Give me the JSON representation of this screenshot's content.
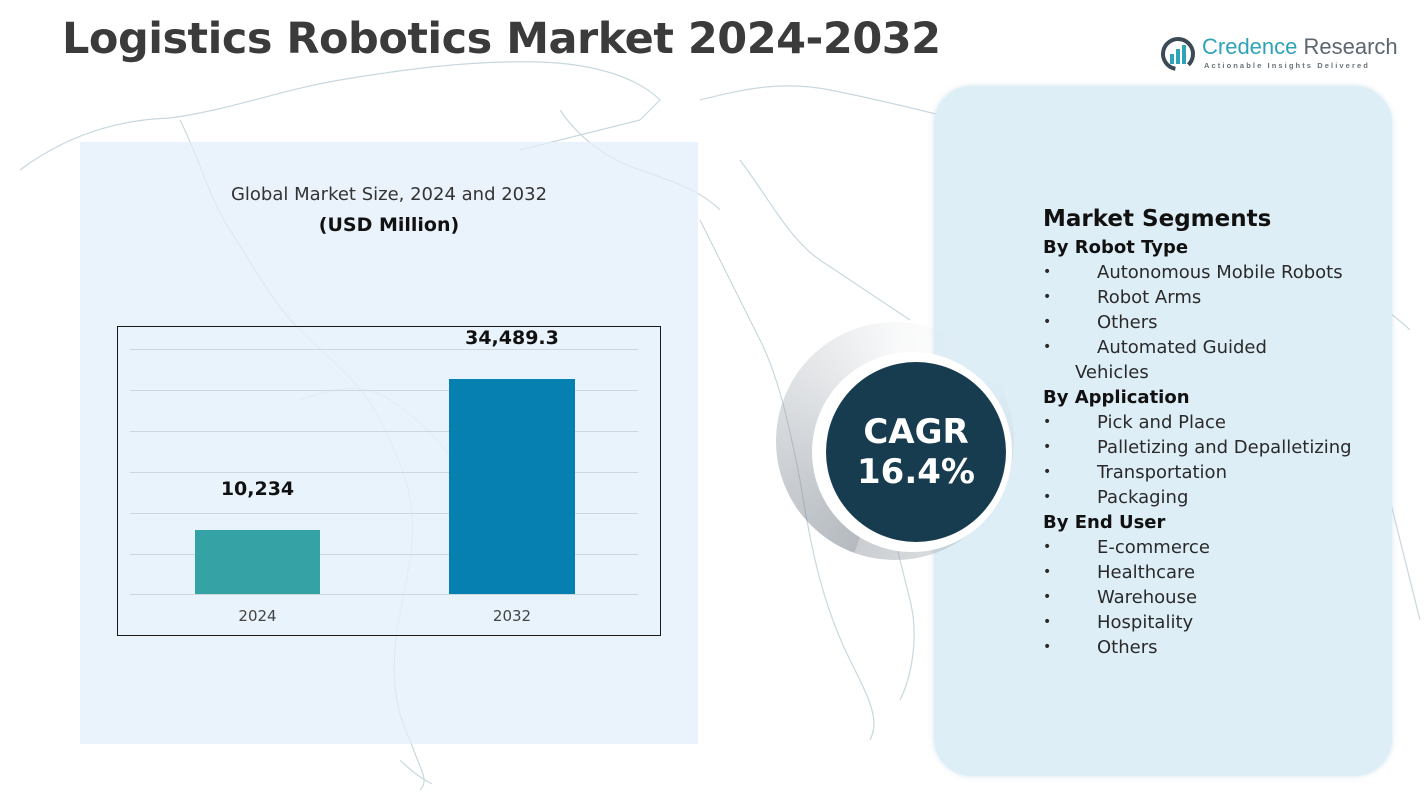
{
  "header": {
    "title": "Logistics Robotics Market 2024-2032"
  },
  "logo": {
    "name_part1": "Credence",
    "name_part2": " Research",
    "tagline": "Actionable Insights Delivered",
    "icon": "bar-chart-circle-icon",
    "colors": {
      "teal": "#2fa3b8",
      "gray": "#5b6670"
    }
  },
  "chart_panel": {
    "subtitle": "Global Market Size, 2024 and 2032",
    "unit": "(USD Million)"
  },
  "chart_data": {
    "type": "bar",
    "title": "Global Market Size, 2024 and 2032",
    "ylabel": "(USD Million)",
    "xlabel": "",
    "categories": [
      "2024",
      "2032"
    ],
    "values": [
      10234,
      34489.3
    ],
    "value_labels": [
      "10,234",
      "34,489.3"
    ],
    "colors": [
      "#35a3a5",
      "#0680b1"
    ],
    "grid": true,
    "legend": null,
    "ylim": [
      0,
      40000
    ]
  },
  "cagr": {
    "label": "CAGR",
    "value": "16.4%",
    "color": "#173c50"
  },
  "segments": {
    "title": "Market Segments",
    "groups": [
      {
        "title": "By Robot Type",
        "items": [
          "Autonomous Mobile Robots",
          "Robot Arms",
          "Others",
          "Automated Guided",
          "Vehicles"
        ]
      },
      {
        "title": "By Application",
        "items": [
          "Pick and Place",
          "Palletizing and Depalletizing",
          "Transportation",
          "Packaging"
        ]
      },
      {
        "title": "By End User",
        "items": [
          "E-commerce",
          "Healthcare",
          "Warehouse",
          "Hospitality",
          "Others"
        ]
      }
    ],
    "bullet": "•"
  }
}
